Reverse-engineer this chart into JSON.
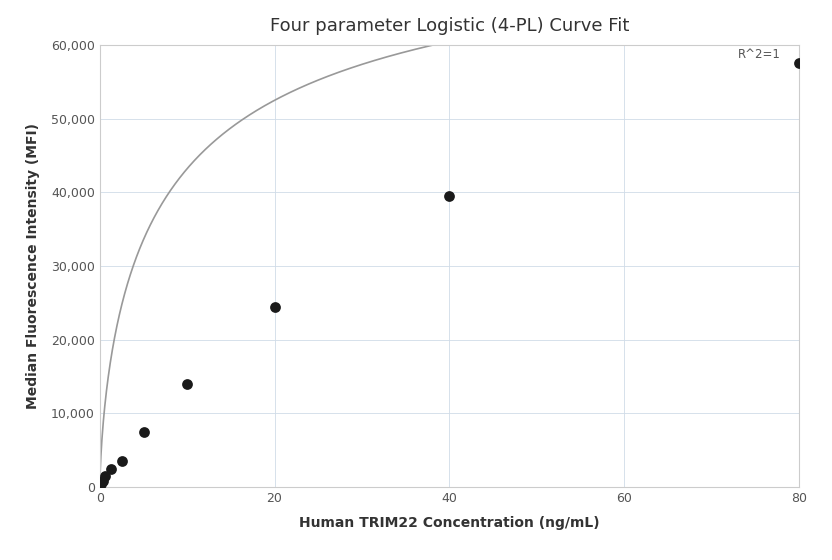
{
  "title": "Four parameter Logistic (4-PL) Curve Fit",
  "xlabel": "Human TRIM22 Concentration (ng/mL)",
  "ylabel": "Median Fluorescence Intensity (MFI)",
  "scatter_x": [
    0.156,
    0.313,
    0.625,
    1.25,
    2.5,
    5.0,
    10.0,
    20.0,
    40.0,
    80.0
  ],
  "scatter_y": [
    500,
    900,
    1500,
    2500,
    3500,
    7500,
    14000,
    24500,
    39500,
    57500
  ],
  "xlim": [
    0,
    80
  ],
  "ylim": [
    0,
    60000
  ],
  "xticks": [
    0,
    20,
    40,
    60,
    80
  ],
  "yticks": [
    0,
    10000,
    20000,
    30000,
    40000,
    50000,
    60000
  ],
  "ytick_labels": [
    "0",
    "10,000",
    "20,000",
    "30,000",
    "40,000",
    "50,000",
    "60,000"
  ],
  "r2_text": "R^2=1",
  "r2_x": 73,
  "r2_y": 59500,
  "dot_color": "#1a1a1a",
  "line_color": "#999999",
  "dot_size": 60,
  "background_color": "#ffffff",
  "plot_bg_color": "#ffffff",
  "grid_color": "#d0dce8",
  "title_fontsize": 13,
  "label_fontsize": 10,
  "tick_fontsize": 9,
  "spine_color": "#cccccc",
  "tick_color": "#555555"
}
